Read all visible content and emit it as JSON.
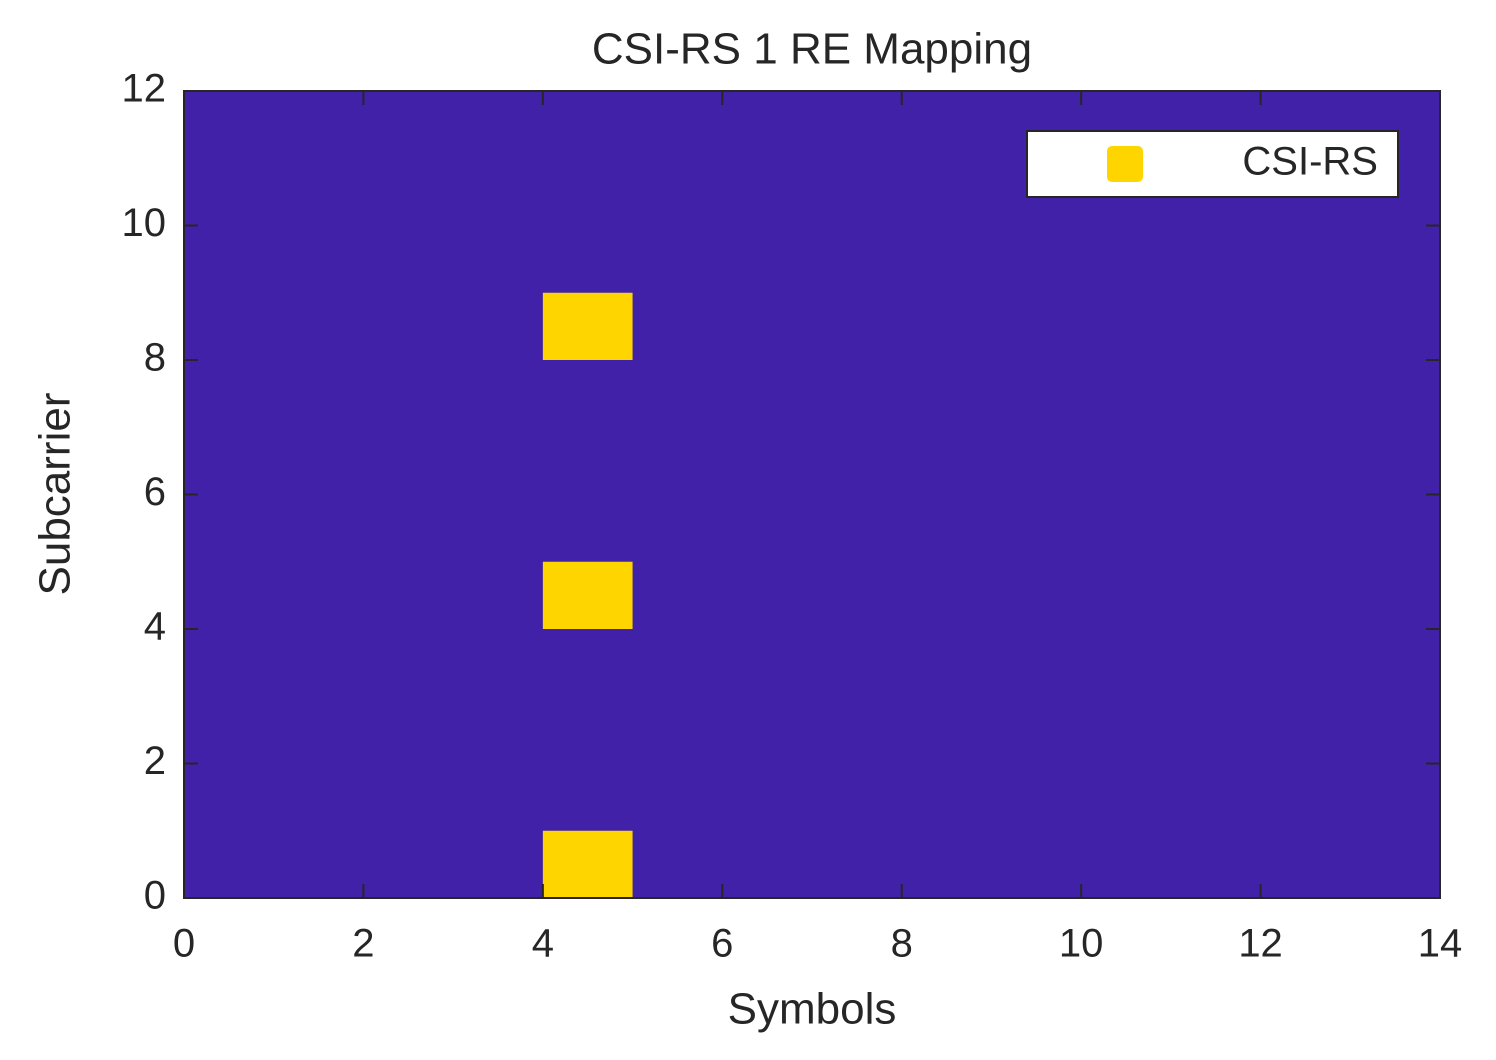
{
  "chart_data": {
    "type": "grid",
    "title": "CSI-RS 1 RE Mapping",
    "x_label": "Symbols",
    "y_label": "Subcarrier",
    "background": "#4121a8",
    "series": [
      {
        "name": "CSI-RS",
        "color": "#ffd500",
        "x": [
          4,
          4,
          4
        ],
        "values": [
          0,
          4,
          8
        ]
      }
    ],
    "xlim": [
      0,
      14
    ],
    "xticks": [
      0,
      2,
      4,
      6,
      8,
      10,
      12,
      14
    ],
    "ylim": [
      0,
      12
    ],
    "yticks": [
      0,
      2,
      4,
      6,
      8,
      10,
      12
    ],
    "legend": "upper right"
  }
}
